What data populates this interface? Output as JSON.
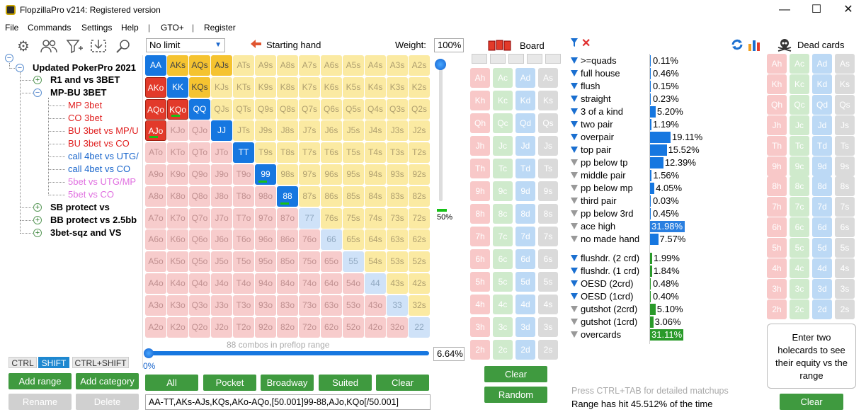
{
  "window": {
    "title": "FlopzillaPro v214: Registered version",
    "minimize": "—",
    "maximize": "☐",
    "close": "✕"
  },
  "menu": {
    "items": [
      "File",
      "Commands",
      "Settings",
      "Help",
      "GTO+",
      "Register"
    ],
    "separator": "|"
  },
  "toolbar": {
    "icons": [
      "gear-icon",
      "users-icon",
      "filter-icon",
      "import-icon",
      "search-icon"
    ]
  },
  "tree": {
    "root": "Updated PokerPro 2021",
    "r1": "R1 and vs 3BET",
    "mpbu": "MP-BU 3BET",
    "mp3bet": "MP 3bet",
    "co3bet": "CO 3bet",
    "bu3betmp": "BU 3bet vs MP/U",
    "bu3betco": "BU 3bet vs CO",
    "call4utg": "call 4bet vs UTG/",
    "call4co": "call 4bet vs CO",
    "bet5utg": "5bet vs UTG/MP",
    "bet5co": "5bet vs CO",
    "sb": "SB protect vs",
    "bb": "BB protect vs 2.5bb",
    "sqz": "3bet-sqz and VS"
  },
  "keys": {
    "ctrl": "CTRL",
    "shift": "SHIFT",
    "ctrlshift": "CTRL+SHIFT"
  },
  "left_buttons": {
    "add_range": "Add range",
    "add_category": "Add category",
    "rename": "Rename",
    "delete": "Delete"
  },
  "range": {
    "limit": "No limit",
    "starting_hand": "Starting hand",
    "weight_label": "Weight:",
    "weight_value": "100%",
    "slider_value": "50%",
    "combos": "88 combos in preflop range",
    "pct": "6.64%",
    "slider_min": "0%",
    "text": "AA-TT,AKs-AJs,KQs,AKo-AQo,[50.001]99-88,AJo,KQo[/50.001]"
  },
  "grid": [
    [
      "AA",
      "AKs",
      "AQs",
      "AJs",
      "ATs",
      "A9s",
      "A8s",
      "A7s",
      "A6s",
      "A5s",
      "A4s",
      "A3s",
      "A2s"
    ],
    [
      "AKo",
      "KK",
      "KQs",
      "KJs",
      "KTs",
      "K9s",
      "K8s",
      "K7s",
      "K6s",
      "K5s",
      "K4s",
      "K3s",
      "K2s"
    ],
    [
      "AQo",
      "KQo",
      "QQ",
      "QJs",
      "QTs",
      "Q9s",
      "Q8s",
      "Q7s",
      "Q6s",
      "Q5s",
      "Q4s",
      "Q3s",
      "Q2s"
    ],
    [
      "AJo",
      "KJo",
      "QJo",
      "JJ",
      "JTs",
      "J9s",
      "J8s",
      "J7s",
      "J6s",
      "J5s",
      "J4s",
      "J3s",
      "J2s"
    ],
    [
      "ATo",
      "KTo",
      "QTo",
      "JTo",
      "TT",
      "T9s",
      "T8s",
      "T7s",
      "T6s",
      "T5s",
      "T4s",
      "T3s",
      "T2s"
    ],
    [
      "A9o",
      "K9o",
      "Q9o",
      "J9o",
      "T9o",
      "99",
      "98s",
      "97s",
      "96s",
      "95s",
      "94s",
      "93s",
      "92s"
    ],
    [
      "A8o",
      "K8o",
      "Q8o",
      "J8o",
      "T8o",
      "98o",
      "88",
      "87s",
      "86s",
      "85s",
      "84s",
      "83s",
      "82s"
    ],
    [
      "A7o",
      "K7o",
      "Q7o",
      "J7o",
      "T7o",
      "97o",
      "87o",
      "77",
      "76s",
      "75s",
      "74s",
      "73s",
      "72s"
    ],
    [
      "A6o",
      "K6o",
      "Q6o",
      "J6o",
      "T6o",
      "96o",
      "86o",
      "76o",
      "66",
      "65s",
      "64s",
      "63s",
      "62s"
    ],
    [
      "A5o",
      "K5o",
      "Q5o",
      "J5o",
      "T5o",
      "95o",
      "85o",
      "75o",
      "65o",
      "55",
      "54s",
      "53s",
      "52s"
    ],
    [
      "A4o",
      "K4o",
      "Q4o",
      "J4o",
      "T4o",
      "94o",
      "84o",
      "74o",
      "64o",
      "54o",
      "44",
      "43s",
      "42s"
    ],
    [
      "A3o",
      "K3o",
      "Q3o",
      "J3o",
      "T3o",
      "93o",
      "83o",
      "73o",
      "63o",
      "53o",
      "43o",
      "33",
      "32s"
    ],
    [
      "A2o",
      "K2o",
      "Q2o",
      "J2o",
      "T2o",
      "92o",
      "82o",
      "72o",
      "62o",
      "52o",
      "42o",
      "32o",
      "22"
    ]
  ],
  "grid_buttons": {
    "all": "All",
    "pocket": "Pocket",
    "broadway": "Broadway",
    "suited": "Suited",
    "clear": "Clear"
  },
  "board": {
    "title": "Board",
    "ranks": [
      "A",
      "K",
      "Q",
      "J",
      "T",
      "9",
      "8",
      "7",
      "6",
      "5",
      "4",
      "3",
      "2"
    ],
    "suits": [
      "h",
      "c",
      "d",
      "s"
    ],
    "clear": "Clear",
    "random": "Random"
  },
  "stats": [
    {
      "label": ">=quads",
      "value": "0.11%",
      "pct": 0.11,
      "filter": "blue"
    },
    {
      "label": "full house",
      "value": "0.46%",
      "pct": 0.46,
      "filter": "blue"
    },
    {
      "label": "flush",
      "value": "0.15%",
      "pct": 0.15,
      "filter": "blue"
    },
    {
      "label": "straight",
      "value": "0.23%",
      "pct": 0.23,
      "filter": "blue"
    },
    {
      "label": "3 of a kind",
      "value": "5.20%",
      "pct": 5.2,
      "filter": "blue"
    },
    {
      "label": "two pair",
      "value": "1.19%",
      "pct": 1.19,
      "filter": "blue"
    },
    {
      "label": "overpair",
      "value": "19.11%",
      "pct": 19.11,
      "filter": "blue"
    },
    {
      "label": "top pair",
      "value": "15.52%",
      "pct": 15.52,
      "filter": "blue"
    },
    {
      "label": "pp below tp",
      "value": "12.39%",
      "pct": 12.39,
      "filter": "gray"
    },
    {
      "label": "middle pair",
      "value": "1.56%",
      "pct": 1.56,
      "filter": "gray"
    },
    {
      "label": "pp below mp",
      "value": "4.05%",
      "pct": 4.05,
      "filter": "gray"
    },
    {
      "label": "third pair",
      "value": "0.03%",
      "pct": 0.03,
      "filter": "gray"
    },
    {
      "label": "pp below 3rd",
      "value": "0.45%",
      "pct": 0.45,
      "filter": "gray"
    },
    {
      "label": "ace high",
      "value": "31.98%",
      "pct": 31.98,
      "filter": "gray"
    },
    {
      "label": "no made hand",
      "value": "7.57%",
      "pct": 7.57,
      "filter": "gray"
    }
  ],
  "draws": [
    {
      "label": "flushdr. (2 crd)",
      "value": "1.99%",
      "pct": 1.99,
      "filter": "blue"
    },
    {
      "label": "flushdr. (1 crd)",
      "value": "1.84%",
      "pct": 1.84,
      "filter": "blue"
    },
    {
      "label": "OESD (2crd)",
      "value": "0.48%",
      "pct": 0.48,
      "filter": "blue"
    },
    {
      "label": "OESD (1crd)",
      "value": "0.40%",
      "pct": 0.4,
      "filter": "blue"
    },
    {
      "label": "gutshot (2crd)",
      "value": "5.10%",
      "pct": 5.1,
      "filter": "gray"
    },
    {
      "label": "gutshot (1crd)",
      "value": "3.06%",
      "pct": 3.06,
      "filter": "gray"
    },
    {
      "label": "overcards",
      "value": "31.11%",
      "pct": 31.11,
      "filter": "gray"
    }
  ],
  "footer": {
    "hint": "Press CTRL+TAB for detailed matchups",
    "hit": "Range has hit 45.512% of the time"
  },
  "dead": {
    "title": "Dead cards",
    "clear": "Clear",
    "equity_msg": "Enter two holecards to see their equity vs the range"
  },
  "colors": {
    "green": "#3f9a3f",
    "blue": "#1677e0",
    "red": "#e23a2a",
    "yellow": "#f5c330"
  }
}
